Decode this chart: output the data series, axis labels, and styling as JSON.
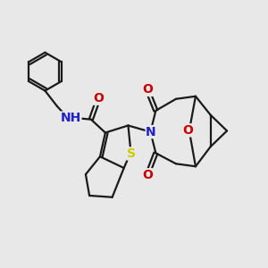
{
  "fig_bg": "#e8e8e8",
  "bond_color": "#1a1a1a",
  "bond_width": 1.6,
  "atom_colors": {
    "N": "#2020cc",
    "O": "#cc0000",
    "S": "#cccc00",
    "C": "#1a1a1a"
  },
  "font_size": 10
}
